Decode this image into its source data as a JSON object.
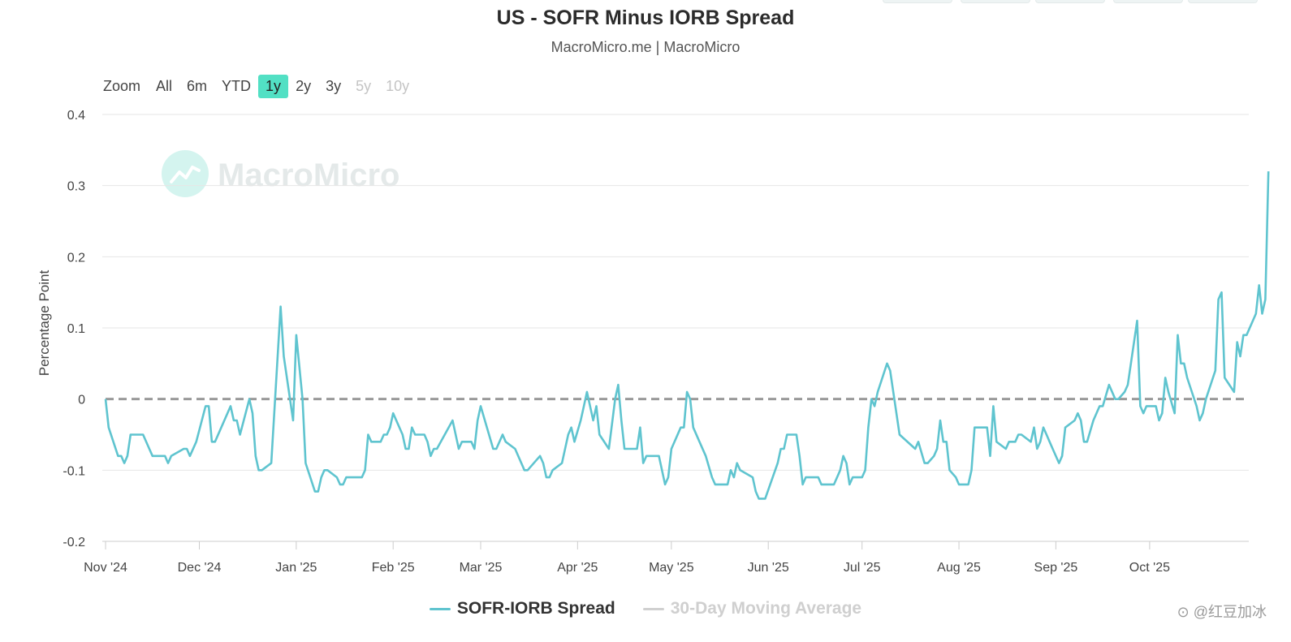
{
  "header": {
    "title": "US - SOFR Minus IORB Spread",
    "subtitle": "MacroMicro.me | MacroMicro"
  },
  "zoom": {
    "label": "Zoom",
    "buttons": [
      {
        "label": "All",
        "state": "normal"
      },
      {
        "label": "6m",
        "state": "normal"
      },
      {
        "label": "YTD",
        "state": "normal"
      },
      {
        "label": "1y",
        "state": "active"
      },
      {
        "label": "2y",
        "state": "normal"
      },
      {
        "label": "3y",
        "state": "normal"
      },
      {
        "label": "5y",
        "state": "disabled"
      },
      {
        "label": "10y",
        "state": "disabled"
      }
    ]
  },
  "watermark": "MacroMicro",
  "corner_mark": "⊙ @红豆加冰",
  "colors": {
    "series": "#5fc4cf",
    "baseline": "#999999",
    "accent": "#52e0c4",
    "grid": "#e6e6e6"
  },
  "chart_data": {
    "type": "line",
    "ylabel": "Percentage Point",
    "ylim": [
      -0.2,
      0.4
    ],
    "yticks": [
      {
        "value": 0.4,
        "label": "0.4"
      },
      {
        "value": 0.3,
        "label": "0.3"
      },
      {
        "value": 0.2,
        "label": "0.2"
      },
      {
        "value": 0.1,
        "label": "0.1"
      },
      {
        "value": 0,
        "label": "0"
      },
      {
        "value": -0.1,
        "label": "-0.1"
      },
      {
        "value": -0.2,
        "label": "-0.2"
      }
    ],
    "xlim": [
      "2024-11-01",
      "2025-10-30"
    ],
    "xticks": [
      {
        "date": "2024-11-01",
        "label": "Nov '24"
      },
      {
        "date": "2024-12-01",
        "label": "Dec '24"
      },
      {
        "date": "2025-01-01",
        "label": "Jan '25"
      },
      {
        "date": "2025-02-01",
        "label": "Feb '25"
      },
      {
        "date": "2025-03-01",
        "label": "Mar '25"
      },
      {
        "date": "2025-04-01",
        "label": "Apr '25"
      },
      {
        "date": "2025-05-01",
        "label": "May '25"
      },
      {
        "date": "2025-06-01",
        "label": "Jun '25"
      },
      {
        "date": "2025-07-01",
        "label": "Jul '25"
      },
      {
        "date": "2025-08-01",
        "label": "Aug '25"
      },
      {
        "date": "2025-09-01",
        "label": "Sep '25"
      },
      {
        "date": "2025-10-01",
        "label": "Oct '25"
      }
    ],
    "grid": true,
    "legend_position": "bottom-center",
    "series": [
      {
        "name": "SOFR-IORB Spread",
        "color": "#5fc4cf",
        "visible": true,
        "points": [
          [
            "2024-11-01",
            0.0
          ],
          [
            "2024-11-02",
            -0.04
          ],
          [
            "2024-11-05",
            -0.08
          ],
          [
            "2024-11-06",
            -0.08
          ],
          [
            "2024-11-07",
            -0.09
          ],
          [
            "2024-11-08",
            -0.08
          ],
          [
            "2024-11-09",
            -0.05
          ],
          [
            "2024-11-13",
            -0.05
          ],
          [
            "2024-11-15",
            -0.07
          ],
          [
            "2024-11-16",
            -0.08
          ],
          [
            "2024-11-20",
            -0.08
          ],
          [
            "2024-11-21",
            -0.09
          ],
          [
            "2024-11-22",
            -0.08
          ],
          [
            "2024-11-26",
            -0.07
          ],
          [
            "2024-11-27",
            -0.07
          ],
          [
            "2024-11-28",
            -0.08
          ],
          [
            "2024-11-30",
            -0.06
          ],
          [
            "2024-12-03",
            -0.01
          ],
          [
            "2024-12-04",
            -0.01
          ],
          [
            "2024-12-05",
            -0.06
          ],
          [
            "2024-12-06",
            -0.06
          ],
          [
            "2024-12-11",
            -0.01
          ],
          [
            "2024-12-12",
            -0.03
          ],
          [
            "2024-12-13",
            -0.03
          ],
          [
            "2024-12-14",
            -0.05
          ],
          [
            "2024-12-17",
            0.0
          ],
          [
            "2024-12-18",
            -0.02
          ],
          [
            "2024-12-19",
            -0.08
          ],
          [
            "2024-12-20",
            -0.1
          ],
          [
            "2024-12-21",
            -0.1
          ],
          [
            "2024-12-24",
            -0.09
          ],
          [
            "2024-12-27",
            0.13
          ],
          [
            "2024-12-28",
            0.06
          ],
          [
            "2024-12-31",
            -0.03
          ],
          [
            "2025-01-01",
            0.09
          ],
          [
            "2025-01-03",
            0.0
          ],
          [
            "2025-01-04",
            -0.09
          ],
          [
            "2025-01-07",
            -0.13
          ],
          [
            "2025-01-08",
            -0.13
          ],
          [
            "2025-01-09",
            -0.11
          ],
          [
            "2025-01-10",
            -0.1
          ],
          [
            "2025-01-11",
            -0.1
          ],
          [
            "2025-01-14",
            -0.11
          ],
          [
            "2025-01-15",
            -0.12
          ],
          [
            "2025-01-16",
            -0.12
          ],
          [
            "2025-01-17",
            -0.11
          ],
          [
            "2025-01-22",
            -0.11
          ],
          [
            "2025-01-23",
            -0.1
          ],
          [
            "2025-01-24",
            -0.05
          ],
          [
            "2025-01-25",
            -0.06
          ],
          [
            "2025-01-28",
            -0.06
          ],
          [
            "2025-01-29",
            -0.05
          ],
          [
            "2025-01-30",
            -0.05
          ],
          [
            "2025-01-31",
            -0.04
          ],
          [
            "2025-02-01",
            -0.02
          ],
          [
            "2025-02-04",
            -0.05
          ],
          [
            "2025-02-05",
            -0.07
          ],
          [
            "2025-02-06",
            -0.07
          ],
          [
            "2025-02-07",
            -0.04
          ],
          [
            "2025-02-08",
            -0.05
          ],
          [
            "2025-02-11",
            -0.05
          ],
          [
            "2025-02-12",
            -0.06
          ],
          [
            "2025-02-13",
            -0.08
          ],
          [
            "2025-02-14",
            -0.07
          ],
          [
            "2025-02-15",
            -0.07
          ],
          [
            "2025-02-20",
            -0.03
          ],
          [
            "2025-02-21",
            -0.05
          ],
          [
            "2025-02-22",
            -0.07
          ],
          [
            "2025-02-23",
            -0.06
          ],
          [
            "2025-02-26",
            -0.06
          ],
          [
            "2025-02-27",
            -0.07
          ],
          [
            "2025-02-28",
            -0.03
          ],
          [
            "2025-03-01",
            -0.01
          ],
          [
            "2025-03-05",
            -0.07
          ],
          [
            "2025-03-06",
            -0.07
          ],
          [
            "2025-03-08",
            -0.05
          ],
          [
            "2025-03-09",
            -0.06
          ],
          [
            "2025-03-12",
            -0.07
          ],
          [
            "2025-03-15",
            -0.1
          ],
          [
            "2025-03-16",
            -0.1
          ],
          [
            "2025-03-20",
            -0.08
          ],
          [
            "2025-03-21",
            -0.09
          ],
          [
            "2025-03-22",
            -0.11
          ],
          [
            "2025-03-23",
            -0.11
          ],
          [
            "2025-03-24",
            -0.1
          ],
          [
            "2025-03-27",
            -0.09
          ],
          [
            "2025-03-29",
            -0.05
          ],
          [
            "2025-03-30",
            -0.04
          ],
          [
            "2025-03-31",
            -0.06
          ],
          [
            "2025-04-02",
            -0.03
          ],
          [
            "2025-04-03",
            -0.01
          ],
          [
            "2025-04-04",
            0.01
          ],
          [
            "2025-04-06",
            -0.03
          ],
          [
            "2025-04-07",
            -0.01
          ],
          [
            "2025-04-08",
            -0.05
          ],
          [
            "2025-04-11",
            -0.07
          ],
          [
            "2025-04-13",
            0.0
          ],
          [
            "2025-04-14",
            0.02
          ],
          [
            "2025-04-15",
            -0.03
          ],
          [
            "2025-04-16",
            -0.07
          ],
          [
            "2025-04-20",
            -0.07
          ],
          [
            "2025-04-21",
            -0.04
          ],
          [
            "2025-04-22",
            -0.09
          ],
          [
            "2025-04-23",
            -0.08
          ],
          [
            "2025-04-27",
            -0.08
          ],
          [
            "2025-04-29",
            -0.12
          ],
          [
            "2025-04-30",
            -0.11
          ],
          [
            "2025-05-01",
            -0.07
          ],
          [
            "2025-05-04",
            -0.04
          ],
          [
            "2025-05-05",
            -0.04
          ],
          [
            "2025-05-06",
            0.01
          ],
          [
            "2025-05-07",
            0.0
          ],
          [
            "2025-05-08",
            -0.04
          ],
          [
            "2025-05-10",
            -0.06
          ],
          [
            "2025-05-12",
            -0.08
          ],
          [
            "2025-05-14",
            -0.11
          ],
          [
            "2025-05-15",
            -0.12
          ],
          [
            "2025-05-19",
            -0.12
          ],
          [
            "2025-05-20",
            -0.1
          ],
          [
            "2025-05-21",
            -0.11
          ],
          [
            "2025-05-22",
            -0.09
          ],
          [
            "2025-05-23",
            -0.1
          ],
          [
            "2025-05-27",
            -0.11
          ],
          [
            "2025-05-28",
            -0.13
          ],
          [
            "2025-05-29",
            -0.14
          ],
          [
            "2025-05-31",
            -0.14
          ],
          [
            "2025-06-04",
            -0.09
          ],
          [
            "2025-06-05",
            -0.07
          ],
          [
            "2025-06-06",
            -0.07
          ],
          [
            "2025-06-07",
            -0.05
          ],
          [
            "2025-06-10",
            -0.05
          ],
          [
            "2025-06-11",
            -0.08
          ],
          [
            "2025-06-12",
            -0.12
          ],
          [
            "2025-06-13",
            -0.11
          ],
          [
            "2025-06-17",
            -0.11
          ],
          [
            "2025-06-18",
            -0.12
          ],
          [
            "2025-06-22",
            -0.12
          ],
          [
            "2025-06-24",
            -0.1
          ],
          [
            "2025-06-25",
            -0.08
          ],
          [
            "2025-06-26",
            -0.09
          ],
          [
            "2025-06-27",
            -0.12
          ],
          [
            "2025-06-28",
            -0.11
          ],
          [
            "2025-07-01",
            -0.11
          ],
          [
            "2025-07-02",
            -0.1
          ],
          [
            "2025-07-03",
            -0.04
          ],
          [
            "2025-07-04",
            0.0
          ],
          [
            "2025-07-05",
            -0.01
          ],
          [
            "2025-07-06",
            0.01
          ],
          [
            "2025-07-09",
            0.05
          ],
          [
            "2025-07-10",
            0.04
          ],
          [
            "2025-07-13",
            -0.05
          ],
          [
            "2025-07-18",
            -0.07
          ],
          [
            "2025-07-19",
            -0.06
          ],
          [
            "2025-07-21",
            -0.09
          ],
          [
            "2025-07-22",
            -0.09
          ],
          [
            "2025-07-24",
            -0.08
          ],
          [
            "2025-07-25",
            -0.07
          ],
          [
            "2025-07-26",
            -0.03
          ],
          [
            "2025-07-27",
            -0.06
          ],
          [
            "2025-07-28",
            -0.06
          ],
          [
            "2025-07-29",
            -0.1
          ],
          [
            "2025-07-31",
            -0.11
          ],
          [
            "2025-08-01",
            -0.12
          ],
          [
            "2025-08-04",
            -0.12
          ],
          [
            "2025-08-05",
            -0.1
          ],
          [
            "2025-08-06",
            -0.04
          ],
          [
            "2025-08-10",
            -0.04
          ],
          [
            "2025-08-11",
            -0.08
          ],
          [
            "2025-08-12",
            -0.01
          ],
          [
            "2025-08-13",
            -0.06
          ],
          [
            "2025-08-16",
            -0.07
          ],
          [
            "2025-08-17",
            -0.06
          ],
          [
            "2025-08-19",
            -0.06
          ],
          [
            "2025-08-20",
            -0.05
          ],
          [
            "2025-08-21",
            -0.05
          ],
          [
            "2025-08-24",
            -0.06
          ],
          [
            "2025-08-25",
            -0.04
          ],
          [
            "2025-08-26",
            -0.07
          ],
          [
            "2025-08-27",
            -0.06
          ],
          [
            "2025-08-28",
            -0.04
          ],
          [
            "2025-08-29",
            -0.05
          ],
          [
            "2025-08-30",
            -0.06
          ],
          [
            "2025-08-31",
            -0.07
          ],
          [
            "2025-09-02",
            -0.09
          ],
          [
            "2025-09-03",
            -0.08
          ],
          [
            "2025-09-04",
            -0.04
          ],
          [
            "2025-09-07",
            -0.03
          ],
          [
            "2025-09-08",
            -0.02
          ],
          [
            "2025-09-09",
            -0.03
          ],
          [
            "2025-09-10",
            -0.06
          ],
          [
            "2025-09-11",
            -0.06
          ],
          [
            "2025-09-13",
            -0.03
          ],
          [
            "2025-09-15",
            -0.01
          ],
          [
            "2025-09-16",
            -0.01
          ],
          [
            "2025-09-18",
            0.02
          ],
          [
            "2025-09-20",
            0.0
          ],
          [
            "2025-09-21",
            0.0
          ],
          [
            "2025-09-23",
            0.01
          ],
          [
            "2025-09-24",
            0.02
          ],
          [
            "2025-09-27",
            0.11
          ],
          [
            "2025-09-28",
            -0.01
          ],
          [
            "2025-09-29",
            -0.02
          ],
          [
            "2025-09-30",
            -0.01
          ],
          [
            "2025-10-03",
            -0.01
          ],
          [
            "2025-10-04",
            -0.03
          ],
          [
            "2025-10-05",
            -0.02
          ],
          [
            "2025-10-06",
            0.03
          ],
          [
            "2025-10-07",
            0.01
          ],
          [
            "2025-10-09",
            -0.02
          ],
          [
            "2025-10-10",
            0.09
          ],
          [
            "2025-10-11",
            0.05
          ],
          [
            "2025-10-12",
            0.05
          ],
          [
            "2025-10-13",
            0.03
          ],
          [
            "2025-10-16",
            -0.01
          ],
          [
            "2025-10-17",
            -0.03
          ],
          [
            "2025-10-18",
            -0.02
          ],
          [
            "2025-10-19",
            0.0
          ],
          [
            "2025-10-22",
            0.04
          ],
          [
            "2025-10-23",
            0.14
          ],
          [
            "2025-10-24",
            0.15
          ],
          [
            "2025-10-25",
            0.03
          ],
          [
            "2025-10-28",
            0.01
          ],
          [
            "2025-10-29",
            0.08
          ],
          [
            "2025-10-30",
            0.06
          ],
          [
            "2025-10-31",
            0.09
          ],
          [
            "2025-11-01",
            0.09
          ],
          [
            "2025-11-04",
            0.12
          ],
          [
            "2025-11-05",
            0.16
          ],
          [
            "2025-11-06",
            0.12
          ],
          [
            "2025-11-07",
            0.14
          ],
          [
            "2025-11-08",
            0.32
          ]
        ]
      },
      {
        "name": "30-Day Moving Average",
        "color": "#999999",
        "visible": false,
        "points": []
      }
    ],
    "reference_line": {
      "value": 0,
      "style": "dashed"
    }
  }
}
